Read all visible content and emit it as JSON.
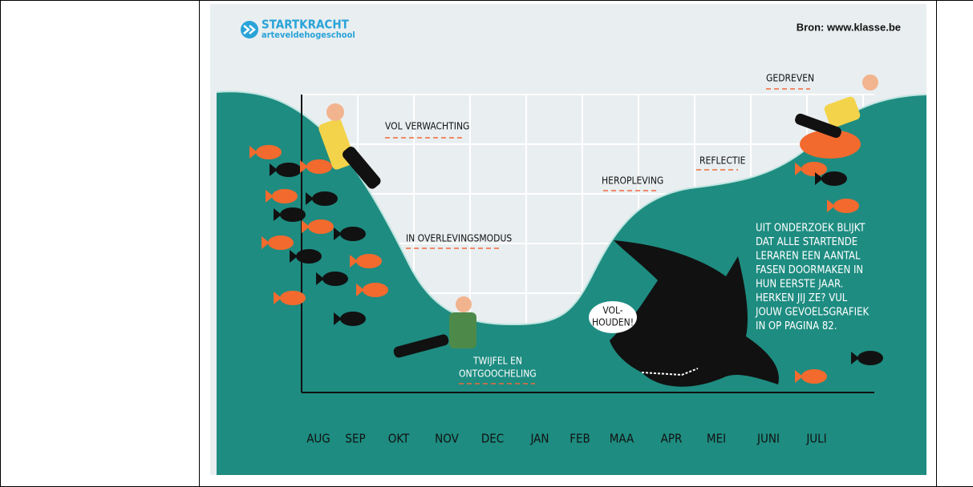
{
  "logo": {
    "name": "STARTKRACHT",
    "school": "arteveldehogeschool"
  },
  "source": "Bron: www.klasse.be",
  "labels": {
    "driven": "GEDREVEN",
    "expectation": "VOL VERWACHTING",
    "reflection": "REFLECTIE",
    "revival": "HEROPLEVING",
    "survival": "IN OVERLEVINGSMODUS",
    "doubt": [
      "TWIJFEL EN",
      "ONTGOOCHELING"
    ]
  },
  "speech": [
    "VOL-",
    "HOUDEN!"
  ],
  "note": [
    "UIT ONDERZOEK BLIJKT",
    "DAT ALLE STARTENDE",
    "LERAREN EEN AANTAL",
    "FASEN DOORMAKEN IN",
    "HUN EERSTE JAAR.",
    "HERKEN JIJ ZE? VUL",
    "JOUW GEVOELSGRAFIEK",
    "IN OP PAGINA 82."
  ],
  "months": [
    "AUG",
    "SEP",
    "OKT",
    "NOV",
    "DEC",
    "JAN",
    "FEB",
    "MAA",
    "APR",
    "MEI",
    "JUNI",
    "JULI"
  ]
}
